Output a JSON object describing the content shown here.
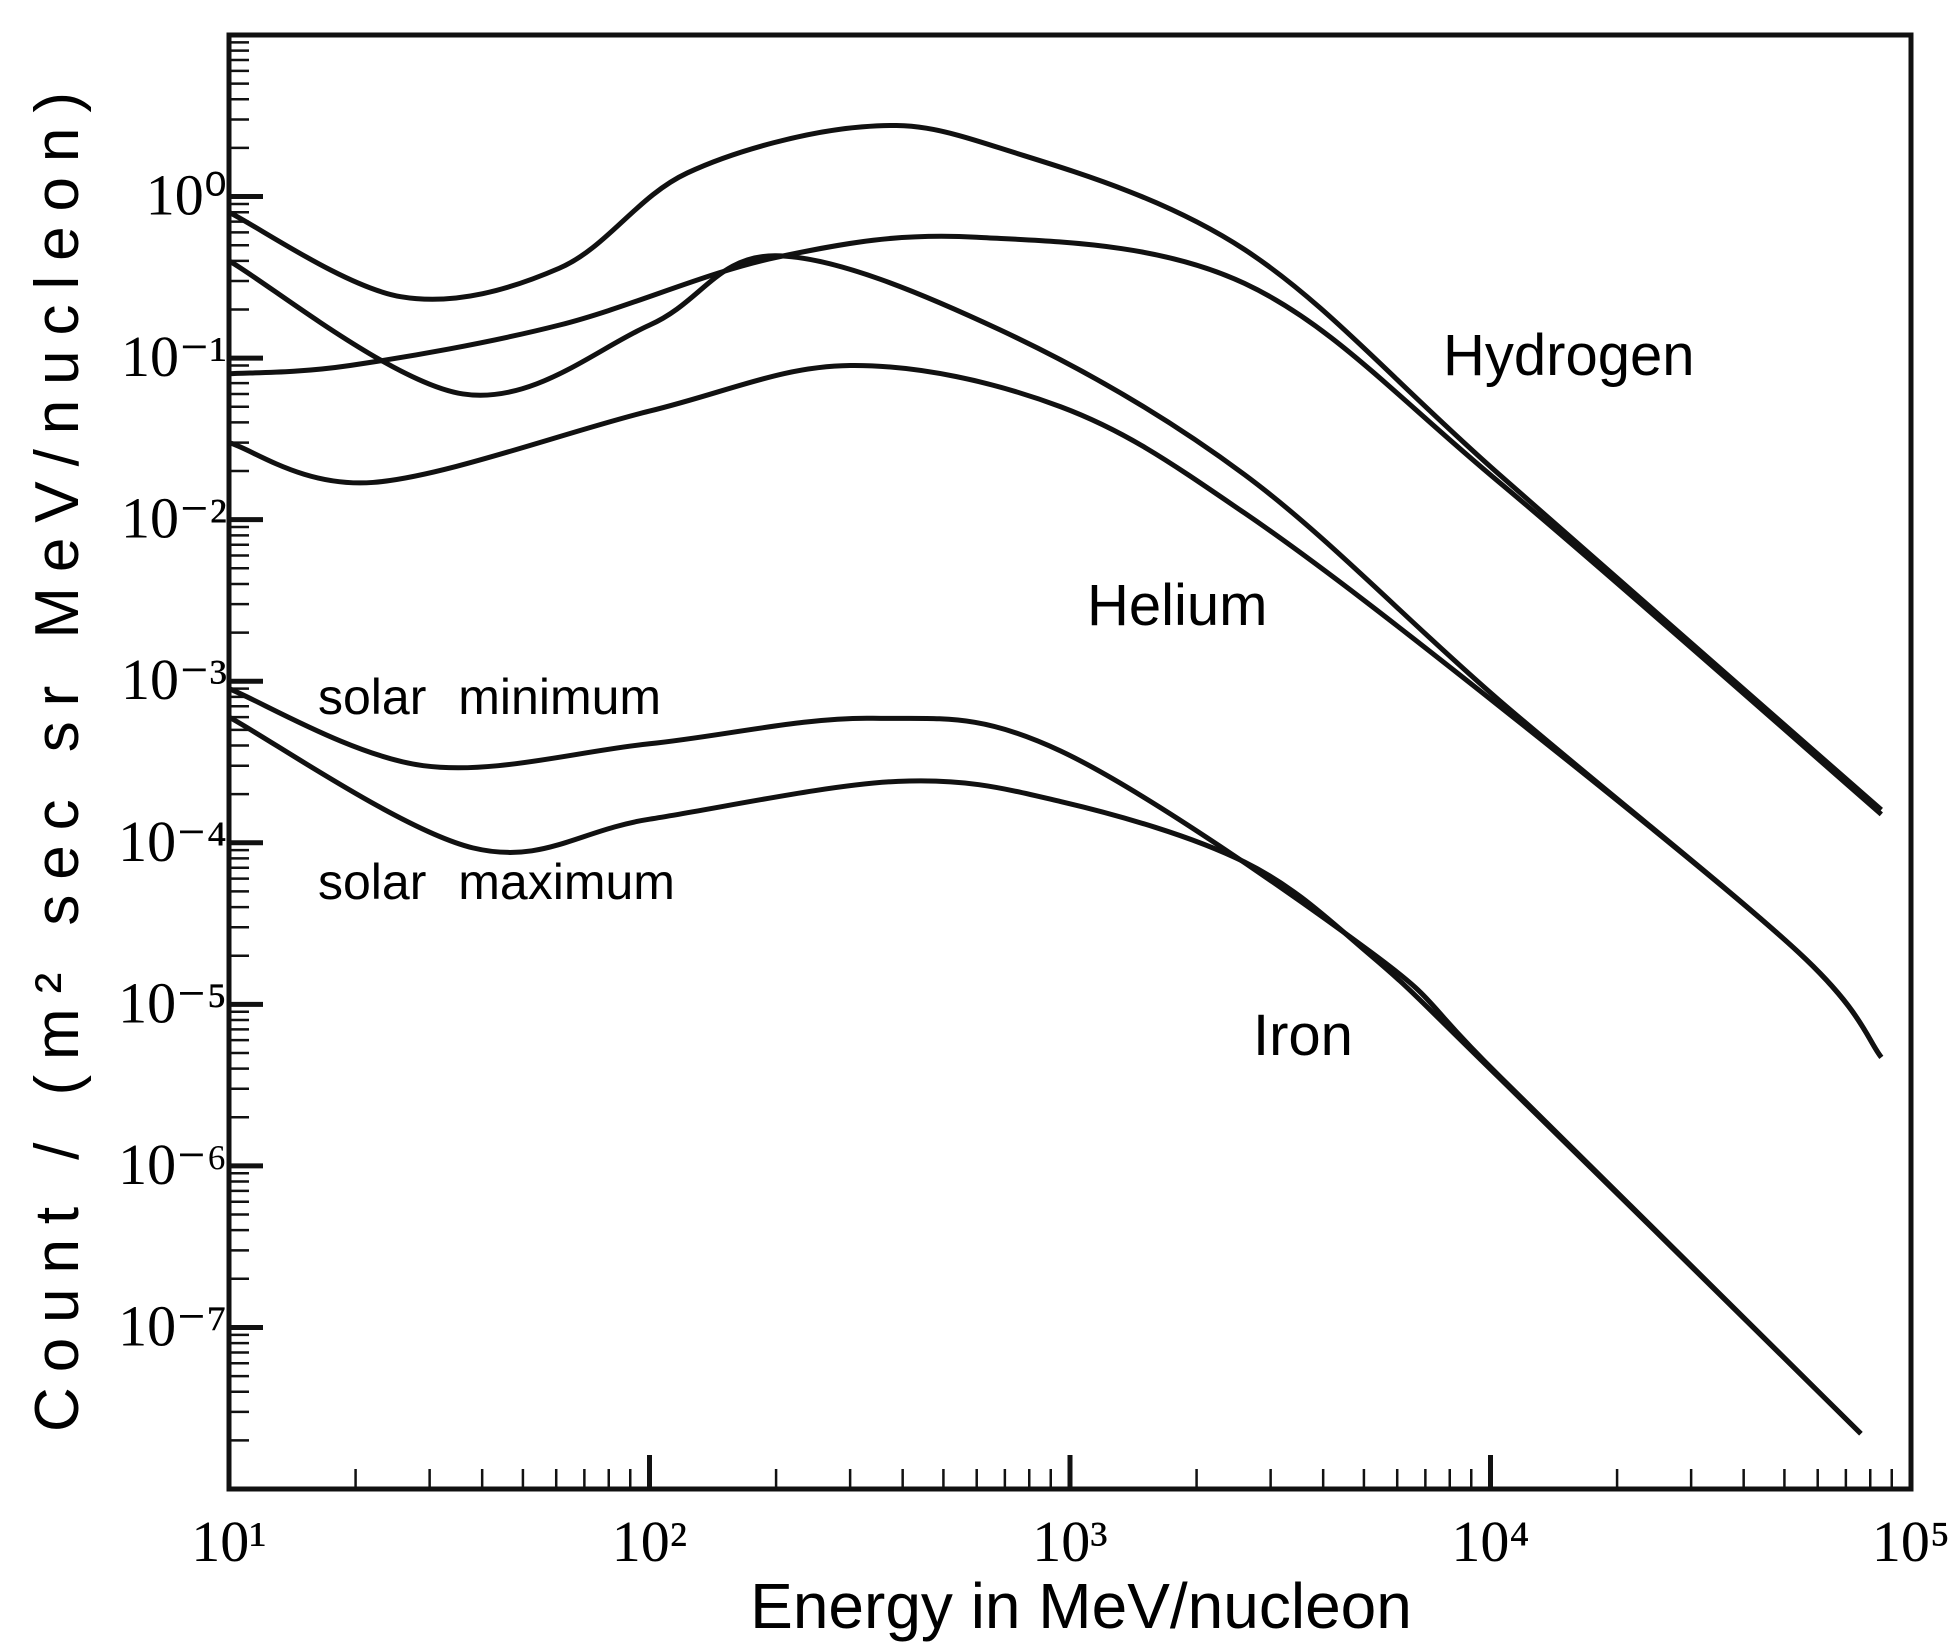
{
  "chart_data": {
    "type": "line",
    "x_label": "Energy   in   MeV/nucleon",
    "y_label": "Count  /  (m² sec  sr  MeV/nucleon)",
    "log_x": true,
    "log_y": true,
    "xlim": [
      10,
      100000
    ],
    "ylim": [
      1e-08,
      10
    ],
    "xticks": [
      {
        "value": 10,
        "label": "10¹"
      },
      {
        "value": 100,
        "label": "10²"
      },
      {
        "value": 1000,
        "label": "10³"
      },
      {
        "value": 10000,
        "label": "10⁴"
      },
      {
        "value": 100000,
        "label": "10⁵"
      }
    ],
    "yticks": [
      {
        "value": 1,
        "label": "10⁰"
      },
      {
        "value": 0.1,
        "label": "10⁻¹"
      },
      {
        "value": 0.01,
        "label": "10⁻²"
      },
      {
        "value": 0.001,
        "label": "10⁻³"
      },
      {
        "value": 0.0001,
        "label": "10⁻⁴"
      },
      {
        "value": 1e-05,
        "label": "10⁻⁵"
      },
      {
        "value": 1e-06,
        "label": "10⁻⁶"
      },
      {
        "value": 1e-07,
        "label": "10⁻⁷"
      }
    ],
    "xminorticks": [
      20,
      30,
      40,
      50,
      60,
      70,
      80,
      90,
      200,
      300,
      400,
      500,
      600,
      700,
      800,
      900,
      2000,
      3000,
      4000,
      5000,
      6000,
      7000,
      8000,
      9000,
      20000,
      30000,
      40000,
      50000,
      60000,
      70000,
      80000,
      90000
    ],
    "yminorticks": [
      2e-08,
      3e-08,
      4e-08,
      5e-08,
      6e-08,
      7e-08,
      8e-08,
      9e-08,
      2e-07,
      3e-07,
      4e-07,
      5e-07,
      6e-07,
      7e-07,
      8e-07,
      9e-07,
      2e-06,
      3e-06,
      4e-06,
      5e-06,
      6e-06,
      7e-06,
      8e-06,
      9e-06,
      2e-05,
      3e-05,
      4e-05,
      5e-05,
      6e-05,
      7e-05,
      8e-05,
      9e-05,
      0.0002,
      0.0003,
      0.0004,
      0.0005,
      0.0006,
      0.0007,
      0.0008,
      0.0009,
      0.002,
      0.003,
      0.004,
      0.005,
      0.006,
      0.007,
      0.008,
      0.009,
      0.02,
      0.03,
      0.04,
      0.05,
      0.06,
      0.07,
      0.08,
      0.09,
      0.2,
      0.3,
      0.4,
      0.5,
      0.6,
      0.7,
      0.8,
      0.9,
      2,
      3,
      4,
      5,
      6,
      7,
      8,
      9
    ],
    "series": [
      {
        "color": "#111111",
        "x": [
          10,
          25.6,
          61,
          123,
          320,
          680,
          2600,
          10500,
          85000
        ],
        "values": [
          0.8,
          0.24,
          0.36,
          1.4,
          2.7,
          2,
          0.47,
          0.019,
          0.00016
        ]
      },
      {
        "color": "#111111",
        "x": [
          10,
          19.4,
          61,
          200,
          600,
          2600,
          10500,
          85000
        ],
        "values": [
          0.08,
          0.09,
          0.16,
          0.42,
          0.56,
          0.29,
          0.017,
          0.00015
        ]
      },
      {
        "color": "#111111",
        "x": [
          10,
          36,
          100,
          200,
          680,
          2600,
          10500,
          54000,
          85000
        ],
        "values": [
          0.4,
          0.06,
          0.16,
          0.43,
          0.15,
          0.019,
          0.00076,
          2.1e-05,
          4.7e-06
        ]
      },
      {
        "color": "#111111",
        "x": [
          10,
          22,
          100,
          300,
          950,
          2600,
          10500,
          54000,
          85000
        ],
        "values": [
          0.03,
          0.017,
          0.047,
          0.09,
          0.05,
          0.011,
          0.0007,
          2.1e-05,
          4.7e-06
        ]
      },
      {
        "color": "#111111",
        "x": [
          10,
          29,
          100,
          340,
          950,
          5200,
          10500,
          76000
        ],
        "values": [
          0.0009,
          0.0003,
          0.00041,
          0.00059,
          0.00037,
          2.1e-05,
          3.6e-06,
          2.2e-08
        ]
      },
      {
        "color": "#111111",
        "x": [
          10,
          38,
          100,
          390,
          950,
          2600,
          5200,
          10500,
          76000
        ],
        "values": [
          0.0006,
          9.3e-05,
          0.00014,
          0.00024,
          0.00018,
          7.6e-05,
          2e-05,
          3.5e-06,
          2.2e-08
        ]
      }
    ],
    "annotations": [
      "Hydrogen",
      "Helium",
      "Iron",
      "solar minimum",
      "solar maximum"
    ]
  }
}
